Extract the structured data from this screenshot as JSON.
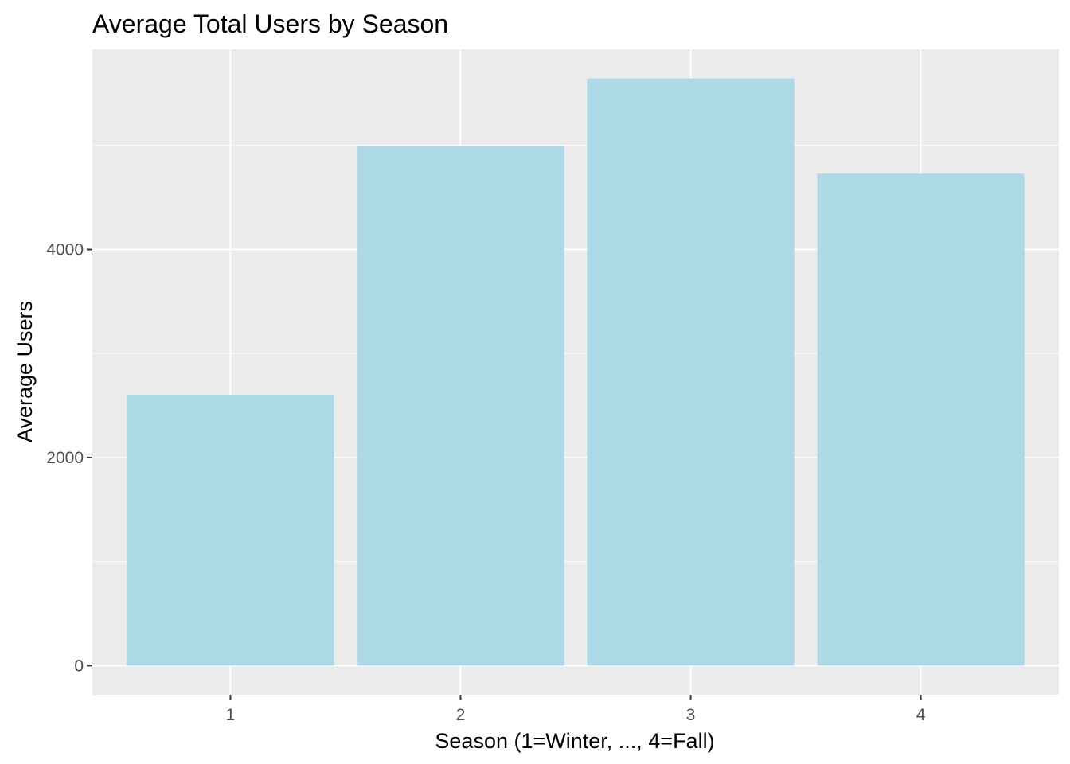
{
  "chart_data": {
    "type": "bar",
    "title": "Average Total Users by Season",
    "xlabel": "Season (1=Winter, ..., 4=Fall)",
    "ylabel": "Average Users",
    "categories": [
      "1",
      "2",
      "3",
      "4"
    ],
    "values": [
      2604,
      4992,
      5644,
      4728
    ],
    "ylim": [
      -280,
      5924
    ],
    "yticks": [
      0,
      2000,
      4000
    ],
    "ytick_labels": [
      "0",
      "2000",
      "4000"
    ],
    "grid": true,
    "bar_color": "#add8e6",
    "panel_color": "#ebebeb",
    "grid_color": "#ffffff"
  }
}
